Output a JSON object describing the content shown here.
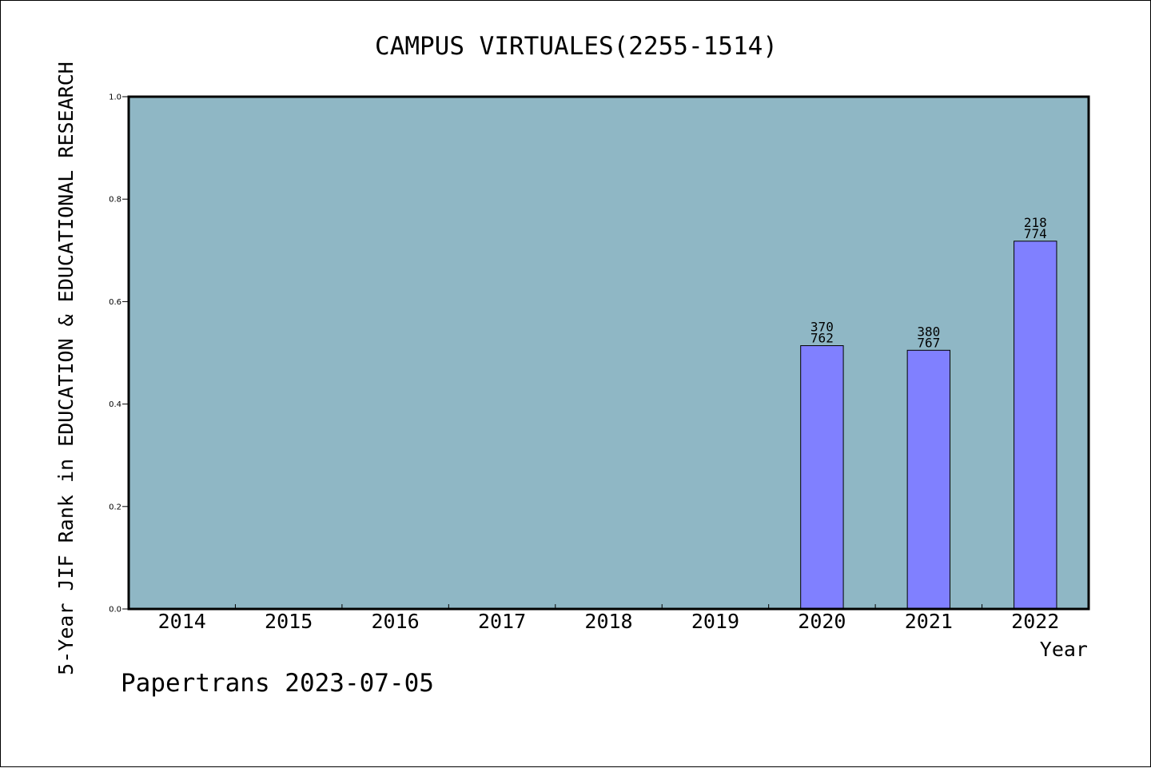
{
  "chart_data": {
    "type": "bar",
    "title": "CAMPUS VIRTUALES(2255-1514)",
    "xlabel": "Year",
    "ylabel": "5-Year JIF Rank in EDUCATION & EDUCATIONAL RESEARCH",
    "footer": "Papertrans 2023-07-05",
    "categories": [
      "2014",
      "2015",
      "2016",
      "2017",
      "2018",
      "2019",
      "2020",
      "2021",
      "2022"
    ],
    "values": [
      null,
      null,
      null,
      null,
      null,
      null,
      0.514,
      0.505,
      0.718
    ],
    "bar_labels": [
      null,
      null,
      null,
      null,
      null,
      null,
      {
        "rank": "370",
        "total": "762"
      },
      {
        "rank": "380",
        "total": "767"
      },
      {
        "rank": "218",
        "total": "774"
      }
    ],
    "ylim": [
      0,
      1.0
    ],
    "yticks": [
      "0.0",
      "0.2",
      "0.4",
      "0.6",
      "0.8",
      "1.0"
    ],
    "grid": false,
    "colors": {
      "plot_background": "#8fb7c5",
      "bar_fill": "#8080ff",
      "bar_stroke": "#000000",
      "axes": "#000000"
    }
  }
}
